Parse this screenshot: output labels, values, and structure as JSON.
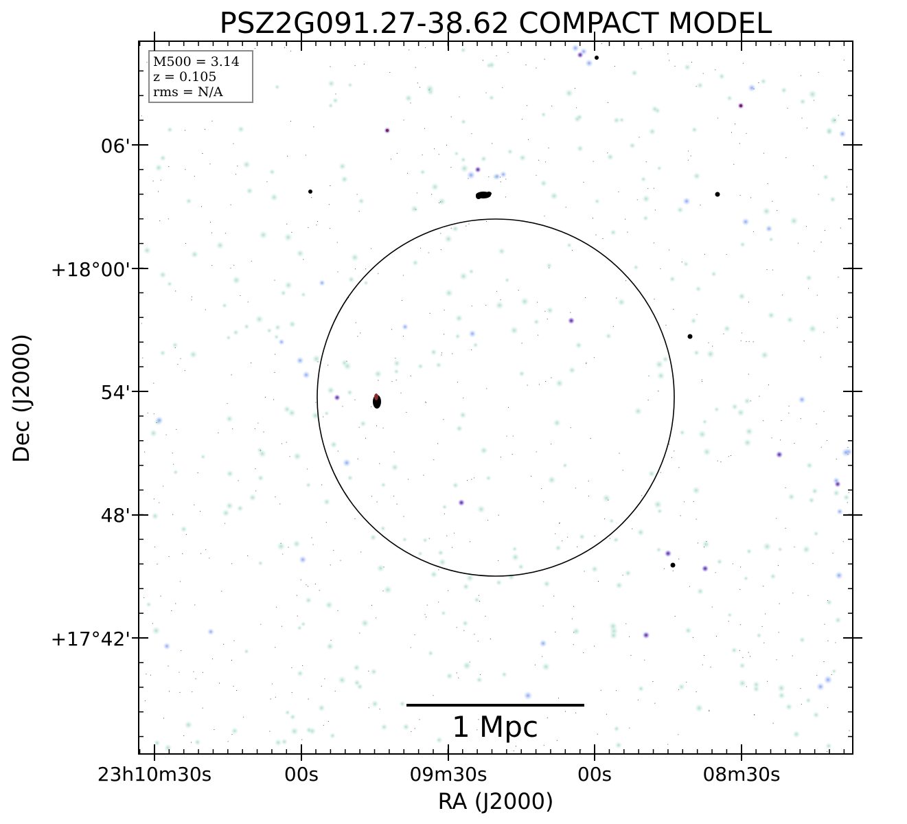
{
  "figure": {
    "title": "PSZ2G091.27-38.62 COMPACT MODEL",
    "xlabel": "RA (J2000)",
    "ylabel": "Dec (J2000)",
    "x_ticks": [
      "23h10m30s",
      "00s",
      "09m30s",
      "00s",
      "08m30s"
    ],
    "y_ticks": [
      "06'",
      "+18°00'",
      "54'",
      "48'",
      "+17°42'"
    ],
    "scale_bar_label": "1 Mpc",
    "info_box": {
      "m500": "M500 = 3.14",
      "z": "z = 0.105",
      "rms": "rms = N/A"
    },
    "colors": {
      "faint_source": "#bfe6d6",
      "mid_source": "#8fb0ee",
      "bright_source": "#7a48b0",
      "saturated_source": "#000000",
      "overlay": "#000000"
    }
  }
}
